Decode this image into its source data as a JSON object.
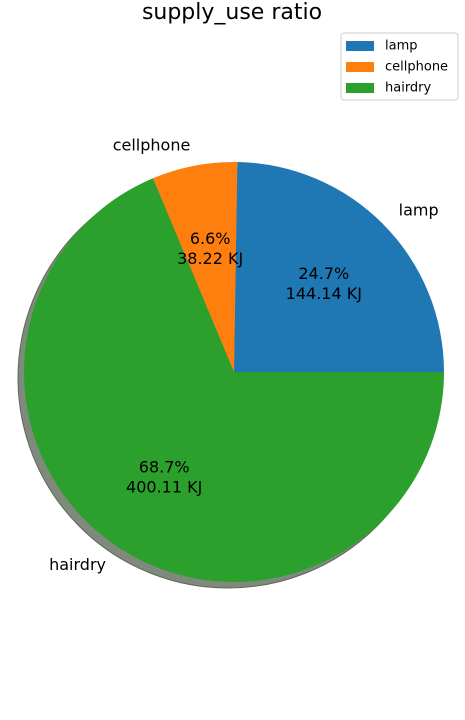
{
  "chart_data": {
    "type": "pie",
    "title": "supply_use ratio",
    "categories": [
      "lamp",
      "cellphone",
      "hairdry"
    ],
    "values": [
      144.14,
      38.22,
      400.11
    ],
    "unit": "KJ",
    "percent_labels": [
      "24.7%",
      "6.6%",
      "68.7%"
    ],
    "value_labels": [
      "144.14 KJ",
      "38.22 KJ",
      "400.11 KJ"
    ],
    "colors": [
      "#1f77b4",
      "#ff7f0e",
      "#2ca02c"
    ],
    "start_angle_deg": 0,
    "direction": "counterclockwise",
    "shadow": true,
    "legend": {
      "placement": "top-right",
      "entries": [
        "lamp",
        "cellphone",
        "hairdry"
      ]
    }
  }
}
